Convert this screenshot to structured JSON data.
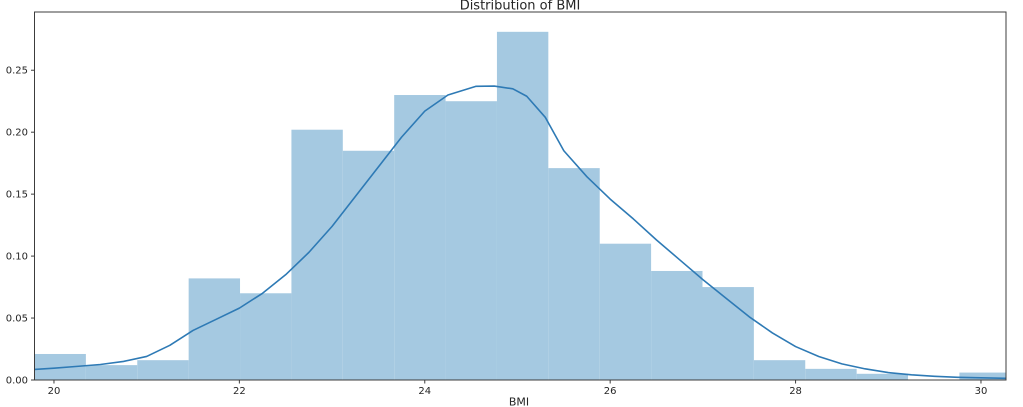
{
  "chart_data": {
    "type": "bar",
    "subtype": "histogram_with_kde",
    "title": "Distribution of BMI",
    "xlabel": "BMI",
    "ylabel": "",
    "xlim": [
      19.79,
      30.27
    ],
    "ylim": [
      0,
      0.297
    ],
    "grid": false,
    "legend": "none",
    "x_ticks": [
      {
        "v": 20,
        "label": "20"
      },
      {
        "v": 22,
        "label": "22"
      },
      {
        "v": 24,
        "label": "24"
      },
      {
        "v": 26,
        "label": "26"
      },
      {
        "v": 28,
        "label": "28"
      },
      {
        "v": 30,
        "label": "30"
      }
    ],
    "y_ticks": [
      {
        "v": 0.0,
        "label": "0.00"
      },
      {
        "v": 0.05,
        "label": "0.05"
      },
      {
        "v": 0.1,
        "label": "0.10"
      },
      {
        "v": 0.15,
        "label": "0.15"
      },
      {
        "v": 0.2,
        "label": "0.20"
      },
      {
        "v": 0.25,
        "label": "0.25"
      }
    ],
    "histogram": {
      "bin_start": 19.79,
      "bin_width": 0.5543,
      "densities": [
        0.021,
        0.012,
        0.016,
        0.082,
        0.07,
        0.202,
        0.185,
        0.23,
        0.225,
        0.281,
        0.171,
        0.11,
        0.088,
        0.075,
        0.016,
        0.009,
        0.005,
        0.0,
        0.006
      ]
    },
    "kde_points": [
      [
        19.79,
        0.0085
      ],
      [
        20.0,
        0.0095
      ],
      [
        20.25,
        0.011
      ],
      [
        20.5,
        0.0125
      ],
      [
        20.75,
        0.015
      ],
      [
        21.0,
        0.019
      ],
      [
        21.25,
        0.028
      ],
      [
        21.5,
        0.04
      ],
      [
        21.75,
        0.049
      ],
      [
        22.0,
        0.058
      ],
      [
        22.25,
        0.07
      ],
      [
        22.5,
        0.085
      ],
      [
        22.75,
        0.103
      ],
      [
        23.0,
        0.124
      ],
      [
        23.25,
        0.148
      ],
      [
        23.5,
        0.172
      ],
      [
        23.75,
        0.196
      ],
      [
        24.0,
        0.217
      ],
      [
        24.25,
        0.23
      ],
      [
        24.55,
        0.237
      ],
      [
        24.75,
        0.2372
      ],
      [
        24.95,
        0.235
      ],
      [
        25.1,
        0.229
      ],
      [
        25.3,
        0.212
      ],
      [
        25.5,
        0.185
      ],
      [
        25.75,
        0.164
      ],
      [
        26.0,
        0.146
      ],
      [
        26.25,
        0.13
      ],
      [
        26.5,
        0.113
      ],
      [
        26.75,
        0.097
      ],
      [
        27.0,
        0.081
      ],
      [
        27.25,
        0.066
      ],
      [
        27.5,
        0.051
      ],
      [
        27.75,
        0.038
      ],
      [
        28.0,
        0.027
      ],
      [
        28.25,
        0.019
      ],
      [
        28.5,
        0.013
      ],
      [
        28.75,
        0.009
      ],
      [
        29.0,
        0.006
      ],
      [
        29.25,
        0.0042
      ],
      [
        29.5,
        0.003
      ],
      [
        29.75,
        0.0022
      ],
      [
        30.0,
        0.0018
      ],
      [
        30.27,
        0.0014
      ]
    ],
    "colors": {
      "bar_fill": "#a5c9e1",
      "kde_line": "#2e7ab5",
      "spine": "#3c3c3c",
      "tick": "#3c3c3c",
      "text": "#262626",
      "background": "#ffffff"
    }
  }
}
